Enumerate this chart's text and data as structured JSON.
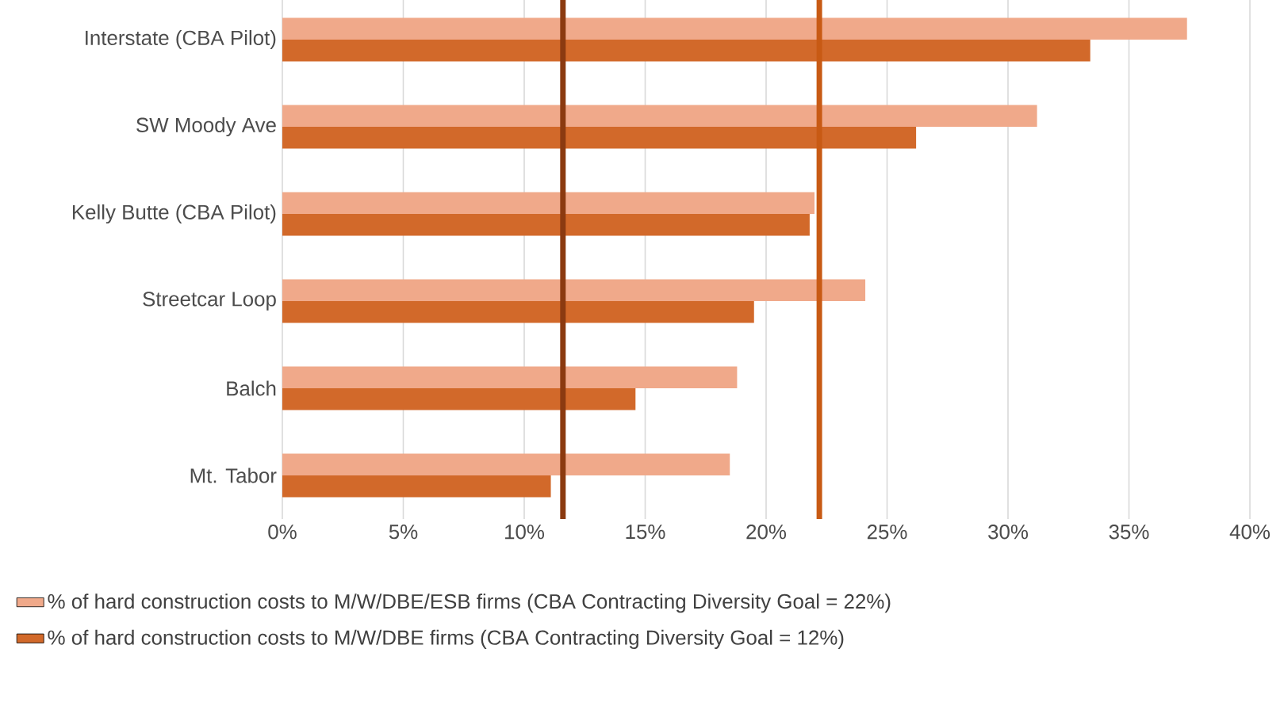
{
  "chart_data": {
    "type": "bar",
    "orientation": "horizontal",
    "categories": [
      "Interstate (CBA Pilot)",
      "SW Moody Ave",
      "Kelly Butte (CBA Pilot)",
      "Streetcar Loop",
      "Balch",
      "Mt. Tabor"
    ],
    "series": [
      {
        "name": "% of hard construction costs to M/W/DBE/ESB firms (CBA Contracting Diversity Goal = 22%)",
        "color": "#f0a98a",
        "values": [
          37.4,
          31.2,
          22.0,
          24.1,
          18.8,
          18.5
        ]
      },
      {
        "name": "% of hard construction costs to M/W/DBE firms (CBA Contracting Diversity Goal = 12%)",
        "color": "#d2692a",
        "values": [
          33.4,
          26.2,
          21.8,
          19.5,
          14.6,
          11.1
        ]
      }
    ],
    "xlim": [
      0,
      40
    ],
    "xticks": [
      {
        "value": 0,
        "label": "0%"
      },
      {
        "value": 5,
        "label": "5%"
      },
      {
        "value": 10,
        "label": "10%"
      },
      {
        "value": 15,
        "label": "15%"
      },
      {
        "value": 20,
        "label": "20%"
      },
      {
        "value": 25,
        "label": "25%"
      },
      {
        "value": 30,
        "label": "30%"
      },
      {
        "value": 35,
        "label": "35%"
      },
      {
        "value": 40,
        "label": "40%"
      }
    ],
    "ref_lines": [
      {
        "axis": "x",
        "value": 11.6,
        "color": "#8b3a10"
      },
      {
        "axis": "x",
        "value": 22.2,
        "color": "#c85a14"
      }
    ],
    "grid": "x",
    "legend": "bottom"
  }
}
